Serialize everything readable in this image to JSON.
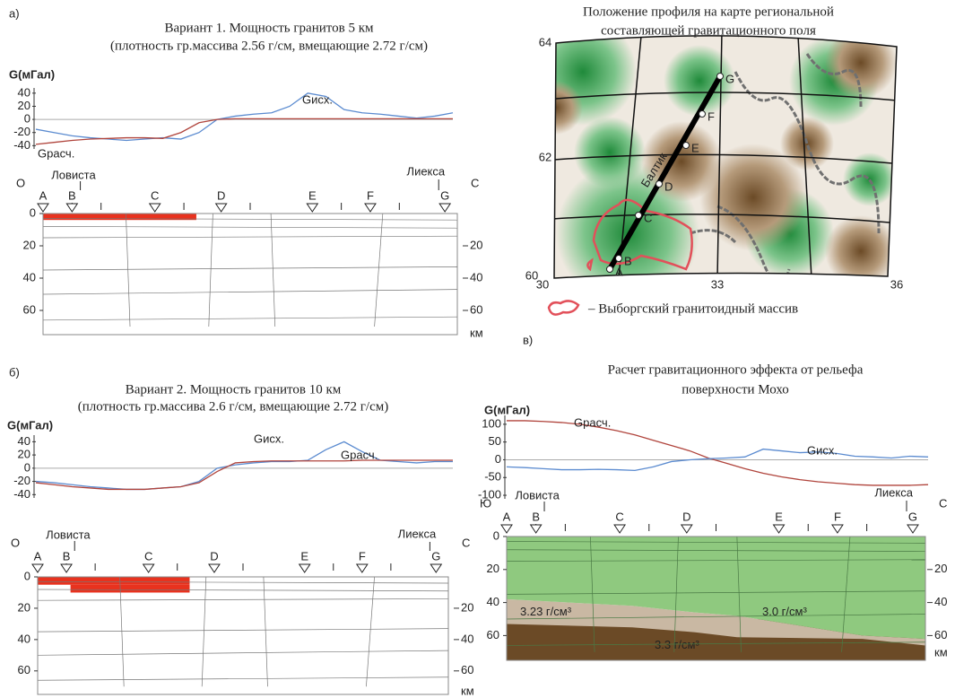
{
  "panels": [
    {
      "label": "а)",
      "title": [
        "Вариант 1. Мощность гранитов 5 км",
        "(плотность гр.массива 2.56 г/см, вмещающие 2.72 г/см)"
      ],
      "graph": {
        "type": "line",
        "ylabel": "G(мГал)",
        "ylim": [
          -45,
          48
        ],
        "yticks": [
          40,
          20,
          0,
          -20,
          -40
        ],
        "series": [
          {
            "name": "Gисх.",
            "color": "#5b8bd0",
            "values": [
              -15,
              -20,
              -25,
              -28,
              -30,
              -32,
              -30,
              -28,
              -30,
              -20,
              0,
              5,
              8,
              10,
              20,
              40,
              35,
              15,
              10,
              8,
              5,
              2,
              5,
              10
            ]
          },
          {
            "name": "Gрасч.",
            "color": "#b0443c",
            "values": [
              -38,
              -35,
              -32,
              -30,
              -29,
              -28,
              -28,
              -29,
              -20,
              -5,
              0,
              1,
              1,
              1,
              1,
              1,
              1,
              1,
              1,
              1,
              1,
              1,
              1,
              1
            ]
          }
        ]
      },
      "section": {
        "left_end": "О",
        "right_end": "С",
        "start_town": "Ловиста",
        "end_town": "Лиекса",
        "stations": [
          "A",
          "B",
          "C",
          "D",
          "E",
          "F",
          "G"
        ],
        "ylim": [
          0,
          75
        ],
        "yticks": [
          0,
          20,
          40,
          60
        ],
        "right_ticks": [
          20,
          40,
          60
        ],
        "unit": "км"
      }
    },
    {
      "label": "б)",
      "title": [
        "Вариант 2. Мощность гранитов 10 км",
        "(плотность гр.массива 2.6 г/см, вмещающие 2.72 г/см)"
      ],
      "graph": {
        "type": "line",
        "ylabel": "G(мГал)",
        "ylim": [
          -45,
          50
        ],
        "yticks": [
          40,
          20,
          0,
          -20,
          -40
        ],
        "series": [
          {
            "name": "Gисх.",
            "color": "#5b8bd0",
            "values": [
              -20,
              -22,
              -25,
              -28,
              -30,
              -32,
              -32,
              -30,
              -28,
              -20,
              0,
              5,
              8,
              10,
              10,
              12,
              28,
              40,
              25,
              12,
              10,
              8,
              10,
              10
            ]
          },
          {
            "name": "Gрасч.",
            "color": "#b0443c",
            "values": [
              -22,
              -25,
              -28,
              -30,
              -32,
              -32,
              -32,
              -30,
              -28,
              -22,
              -5,
              8,
              10,
              11,
              11,
              11,
              11,
              11,
              12,
              12,
              12,
              12,
              12,
              12
            ]
          }
        ]
      },
      "section": {
        "left_end": "О",
        "right_end": "С",
        "start_town": "Ловиста",
        "end_town": "Лиекса",
        "stations": [
          "A",
          "B",
          "C",
          "D",
          "E",
          "F",
          "G"
        ],
        "ylim": [
          0,
          75
        ],
        "yticks": [
          0,
          20,
          40,
          60
        ],
        "right_ticks": [
          20,
          40,
          60
        ],
        "unit": "км"
      }
    },
    {
      "label": "в)",
      "title": [
        "Расчет гравитационного эффекта от рельефа",
        "поверхности Мохо"
      ],
      "graph": {
        "type": "line",
        "ylabel": "G(мГал)",
        "ylim": [
          -110,
          125
        ],
        "yticks": [
          100,
          50,
          0,
          -50,
          -100
        ],
        "series": [
          {
            "name": "Gрасч.",
            "color": "#b0443c",
            "values": [
              110,
              110,
              108,
              105,
              100,
              92,
              82,
              70,
              55,
              40,
              25,
              5,
              -10,
              -25,
              -38,
              -48,
              -56,
              -62,
              -66,
              -70,
              -72,
              -72,
              -72,
              -70
            ]
          },
          {
            "name": "Gисх.",
            "color": "#5b8bd0",
            "values": [
              -20,
              -22,
              -25,
              -28,
              -28,
              -27,
              -28,
              -30,
              -20,
              -5,
              0,
              3,
              5,
              8,
              30,
              25,
              20,
              22,
              18,
              10,
              8,
              5,
              10,
              8
            ]
          }
        ]
      },
      "section": {
        "left_end": "Ю",
        "right_end": "С",
        "start_town": "Ловиста",
        "end_town": "Лиекса",
        "stations": [
          "A",
          "B",
          "C",
          "D",
          "E",
          "F",
          "G"
        ],
        "ylim": [
          0,
          75
        ],
        "yticks": [
          0,
          20,
          40,
          60
        ],
        "right_ticks": [
          20,
          40,
          60
        ],
        "unit": "км",
        "densities": [
          "3.23 г/см³",
          "3.0 г/см³",
          "3.3 г/см³"
        ]
      }
    }
  ],
  "map": {
    "title": [
      "Положение профиля на карте региональной",
      "составляющей гравитационного поля"
    ],
    "lat_ticks": [
      64,
      62,
      60
    ],
    "lon_ticks": [
      30,
      33,
      36
    ],
    "stations": [
      "A",
      "B",
      "C",
      "D",
      "E",
      "F",
      "G"
    ],
    "profile_name": "Балтик",
    "legend": "– Выборгский гранитоидный массив"
  }
}
